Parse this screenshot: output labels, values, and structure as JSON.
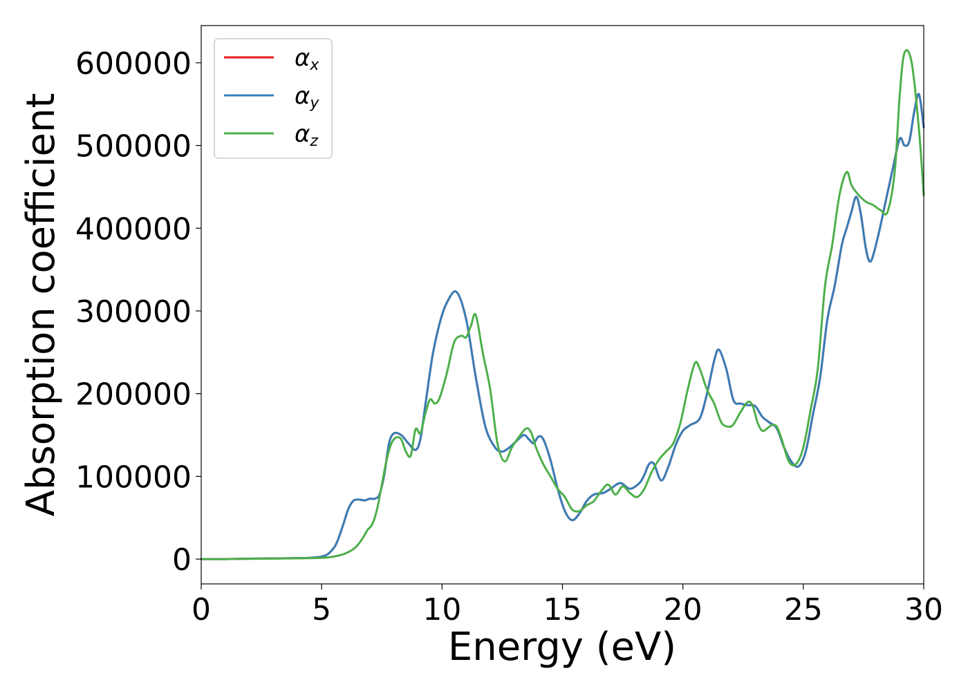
{
  "chart_data": {
    "type": "line",
    "xlabel": "Energy (eV)",
    "ylabel": "Absorption coefficient",
    "xlim": [
      0,
      30
    ],
    "ylim": [
      -30000,
      645000
    ],
    "xticks": [
      0,
      5,
      10,
      15,
      20,
      25,
      30
    ],
    "yticks": [
      0,
      100000,
      200000,
      300000,
      400000,
      500000,
      600000
    ],
    "grid": false,
    "legend_position": "top-left",
    "series": [
      {
        "name": "α_x",
        "legend_main": "α",
        "legend_sub": "x",
        "color": "#e41a1c",
        "x": [
          0,
          1,
          2,
          3,
          4,
          4.5,
          5,
          5.3,
          5.6,
          5.9,
          6.1,
          6.3,
          6.5,
          6.8,
          7.0,
          7.2,
          7.4,
          7.6,
          7.8,
          8.0,
          8.3,
          8.6,
          8.9,
          9.1,
          9.3,
          9.6,
          9.9,
          10.2,
          10.6,
          11.0,
          11.4,
          11.8,
          12.2,
          12.5,
          12.8,
          13.1,
          13.4,
          13.6,
          13.8,
          14.0,
          14.2,
          14.5,
          14.8,
          15.1,
          15.4,
          15.7,
          16.0,
          16.3,
          16.7,
          17.0,
          17.4,
          17.8,
          18.2,
          18.4,
          18.6,
          18.8,
          19.1,
          19.4,
          19.7,
          20.0,
          20.3,
          20.7,
          21.0,
          21.3,
          21.5,
          21.8,
          22.1,
          22.4,
          22.7,
          23.0,
          23.3,
          23.6,
          23.9,
          24.2,
          24.5,
          24.8,
          25.1,
          25.4,
          25.7,
          26.0,
          26.3,
          26.6,
          26.8,
          27.0,
          27.2,
          27.4,
          27.6,
          27.8,
          28.1,
          28.4,
          28.7,
          29.0,
          29.2,
          29.4,
          29.6,
          29.8,
          30.0
        ],
        "values": [
          0,
          0,
          500,
          800,
          1200,
          1500,
          3000,
          7000,
          18000,
          42000,
          60000,
          70000,
          72000,
          71000,
          73000,
          73000,
          78000,
          102000,
          140000,
          152000,
          150000,
          140000,
          132000,
          145000,
          185000,
          245000,
          285000,
          310000,
          323000,
          290000,
          220000,
          160000,
          135000,
          130000,
          135000,
          143000,
          150000,
          145000,
          140000,
          148000,
          145000,
          120000,
          85000,
          58000,
          47000,
          55000,
          70000,
          78000,
          80000,
          85000,
          92000,
          85000,
          92000,
          102000,
          115000,
          115000,
          95000,
          112000,
          138000,
          155000,
          162000,
          170000,
          200000,
          240000,
          253000,
          230000,
          192000,
          188000,
          186000,
          185000,
          172000,
          165000,
          158000,
          135000,
          118000,
          112000,
          130000,
          175000,
          220000,
          290000,
          330000,
          380000,
          400000,
          420000,
          438000,
          415000,
          375000,
          360000,
          390000,
          430000,
          470000,
          508000,
          500000,
          505000,
          540000,
          562000,
          522000
        ]
      },
      {
        "name": "α_y",
        "legend_main": "α",
        "legend_sub": "y",
        "color": "#377eb8",
        "x": [
          0,
          1,
          2,
          3,
          4,
          4.5,
          5,
          5.3,
          5.6,
          5.9,
          6.1,
          6.3,
          6.5,
          6.8,
          7.0,
          7.2,
          7.4,
          7.6,
          7.8,
          8.0,
          8.3,
          8.6,
          8.9,
          9.1,
          9.3,
          9.6,
          9.9,
          10.2,
          10.6,
          11.0,
          11.4,
          11.8,
          12.2,
          12.5,
          12.8,
          13.1,
          13.4,
          13.6,
          13.8,
          14.0,
          14.2,
          14.5,
          14.8,
          15.1,
          15.4,
          15.7,
          16.0,
          16.3,
          16.7,
          17.0,
          17.4,
          17.8,
          18.2,
          18.4,
          18.6,
          18.8,
          19.1,
          19.4,
          19.7,
          20.0,
          20.3,
          20.7,
          21.0,
          21.3,
          21.5,
          21.8,
          22.1,
          22.4,
          22.7,
          23.0,
          23.3,
          23.6,
          23.9,
          24.2,
          24.5,
          24.8,
          25.1,
          25.4,
          25.7,
          26.0,
          26.3,
          26.6,
          26.8,
          27.0,
          27.2,
          27.4,
          27.6,
          27.8,
          28.1,
          28.4,
          28.7,
          29.0,
          29.2,
          29.4,
          29.6,
          29.8,
          30.0
        ],
        "values": [
          0,
          0,
          500,
          800,
          1200,
          1500,
          3000,
          7000,
          18000,
          42000,
          60000,
          70000,
          72000,
          71000,
          73000,
          73000,
          78000,
          102000,
          140000,
          152000,
          150000,
          140000,
          132000,
          145000,
          185000,
          245000,
          285000,
          310000,
          323000,
          290000,
          220000,
          160000,
          135000,
          130000,
          135000,
          143000,
          150000,
          145000,
          140000,
          148000,
          145000,
          120000,
          85000,
          58000,
          47000,
          55000,
          70000,
          78000,
          80000,
          85000,
          92000,
          85000,
          92000,
          102000,
          115000,
          115000,
          95000,
          112000,
          138000,
          155000,
          162000,
          170000,
          200000,
          240000,
          253000,
          230000,
          192000,
          188000,
          186000,
          185000,
          172000,
          165000,
          158000,
          135000,
          118000,
          112000,
          130000,
          175000,
          220000,
          290000,
          330000,
          380000,
          400000,
          420000,
          438000,
          415000,
          375000,
          360000,
          390000,
          430000,
          470000,
          508000,
          500000,
          505000,
          540000,
          562000,
          522000
        ]
      },
      {
        "name": "α_z",
        "legend_main": "α",
        "legend_sub": "z",
        "color": "#4daf4a",
        "x": [
          0,
          1,
          2,
          3,
          4,
          5,
          5.5,
          6.0,
          6.4,
          6.7,
          6.9,
          7.1,
          7.3,
          7.5,
          7.7,
          7.9,
          8.1,
          8.3,
          8.5,
          8.7,
          8.9,
          9.1,
          9.3,
          9.5,
          9.7,
          9.9,
          10.2,
          10.5,
          10.8,
          11.0,
          11.2,
          11.4,
          11.7,
          12.0,
          12.3,
          12.6,
          12.9,
          13.2,
          13.5,
          13.7,
          13.9,
          14.2,
          14.5,
          14.8,
          15.1,
          15.4,
          15.7,
          16.0,
          16.3,
          16.6,
          16.9,
          17.2,
          17.5,
          17.8,
          18.1,
          18.4,
          18.7,
          19.0,
          19.3,
          19.6,
          19.9,
          20.2,
          20.5,
          20.7,
          21.0,
          21.3,
          21.6,
          21.9,
          22.1,
          22.4,
          22.7,
          22.9,
          23.1,
          23.3,
          23.5,
          23.7,
          23.9,
          24.1,
          24.4,
          24.7,
          25.0,
          25.3,
          25.6,
          25.9,
          26.2,
          26.5,
          26.8,
          27.0,
          27.3,
          27.6,
          27.9,
          28.2,
          28.5,
          28.8,
          29.0,
          29.2,
          29.5,
          29.8,
          30.0
        ],
        "values": [
          0,
          0,
          300,
          600,
          900,
          1500,
          3000,
          7000,
          14000,
          25000,
          35000,
          42000,
          60000,
          90000,
          120000,
          140000,
          147000,
          145000,
          130000,
          125000,
          157000,
          152000,
          175000,
          193000,
          188000,
          195000,
          225000,
          262000,
          270000,
          268000,
          282000,
          295000,
          248000,
          205000,
          140000,
          118000,
          135000,
          148000,
          158000,
          153000,
          135000,
          115000,
          100000,
          85000,
          75000,
          60000,
          58000,
          65000,
          70000,
          82000,
          90000,
          78000,
          88000,
          80000,
          75000,
          85000,
          105000,
          120000,
          130000,
          140000,
          165000,
          205000,
          237000,
          230000,
          205000,
          188000,
          165000,
          160000,
          163000,
          178000,
          190000,
          185000,
          165000,
          155000,
          158000,
          162000,
          160000,
          145000,
          118000,
          115000,
          135000,
          180000,
          230000,
          330000,
          380000,
          440000,
          468000,
          452000,
          440000,
          432000,
          428000,
          422000,
          420000,
          470000,
          560000,
          612000,
          600000,
          520000,
          440000
        ]
      }
    ]
  }
}
